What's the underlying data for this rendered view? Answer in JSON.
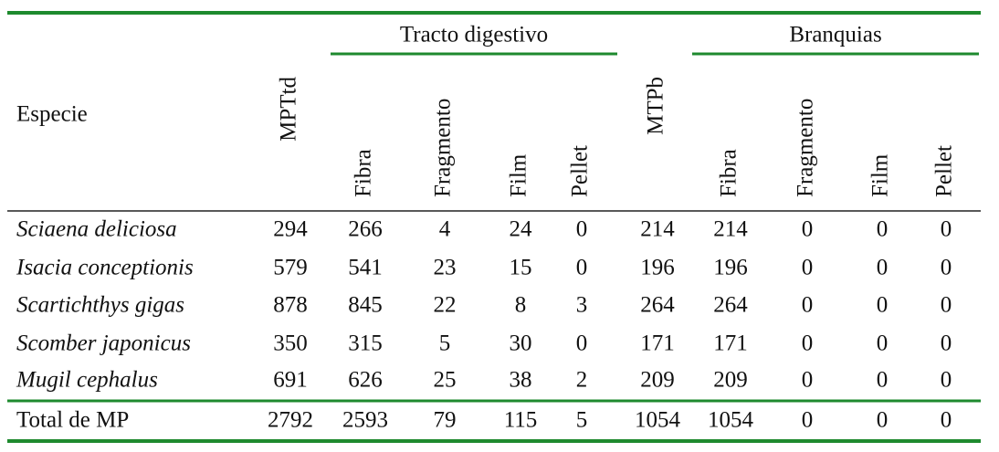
{
  "table": {
    "row_header": "Especie",
    "groups": [
      "Tracto digestivo",
      "Branquias"
    ],
    "columns": [
      "MPTtd",
      "Fibra",
      "Fragmento",
      "Film",
      "Pellet",
      "MTPb",
      "Fibra",
      "Fragmento",
      "Film",
      "Pellet"
    ],
    "rows": [
      {
        "species": "Sciaena deliciosa",
        "values": [
          294,
          266,
          4,
          24,
          0,
          214,
          214,
          0,
          0,
          0
        ]
      },
      {
        "species": "Isacia conceptionis",
        "values": [
          579,
          541,
          23,
          15,
          0,
          196,
          196,
          0,
          0,
          0
        ]
      },
      {
        "species": "Scartichthys gigas",
        "values": [
          878,
          845,
          22,
          8,
          3,
          264,
          264,
          0,
          0,
          0
        ]
      },
      {
        "species": "Scomber japonicus",
        "values": [
          350,
          315,
          5,
          30,
          0,
          171,
          171,
          0,
          0,
          0
        ]
      },
      {
        "species": "Mugil cephalus",
        "values": [
          691,
          626,
          25,
          38,
          2,
          209,
          209,
          0,
          0,
          0
        ]
      }
    ],
    "total": {
      "label": "Total de MP",
      "values": [
        2792,
        2593,
        79,
        115,
        5,
        1054,
        1054,
        0,
        0,
        0
      ]
    }
  }
}
